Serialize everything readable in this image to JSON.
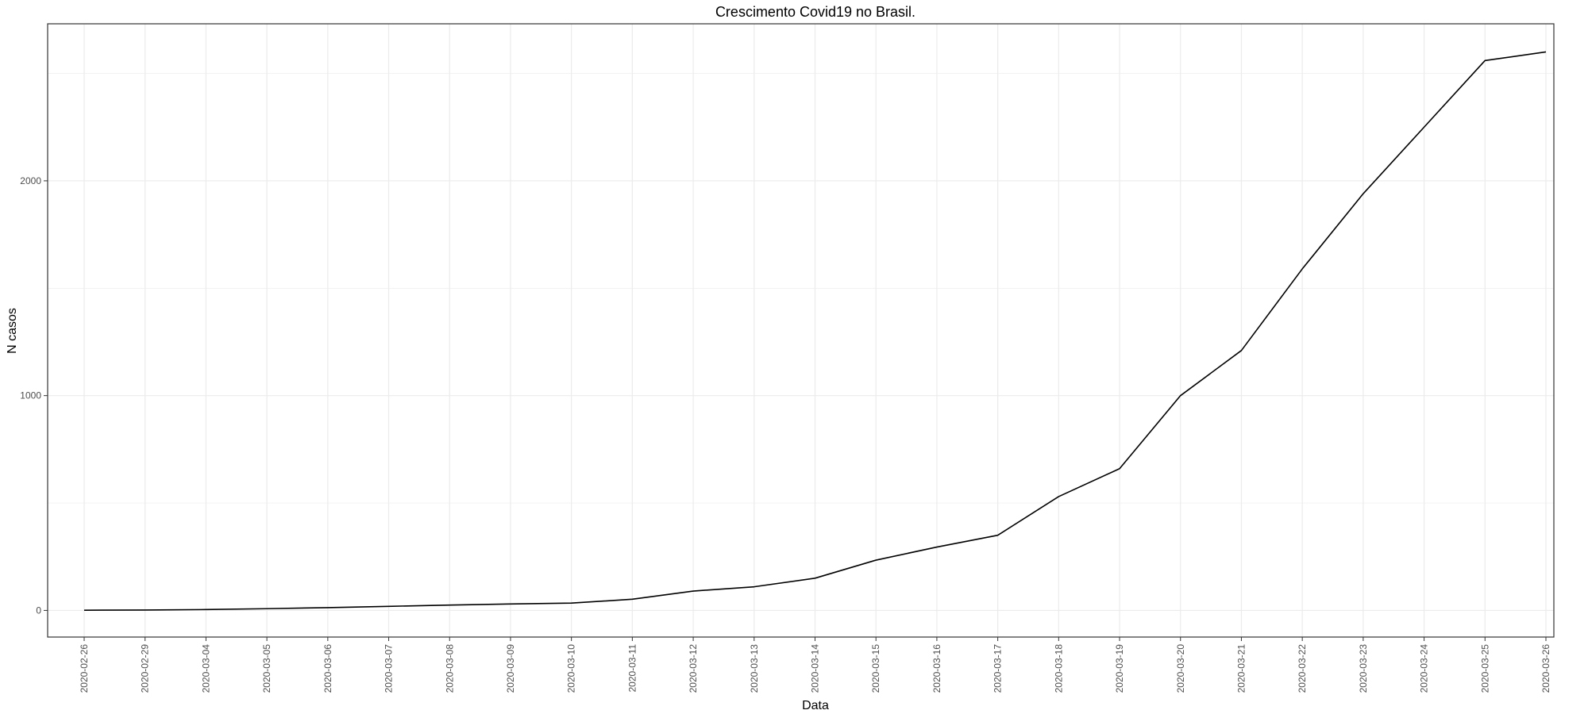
{
  "chart_data": {
    "type": "line",
    "title": "Crescimento Covid19 no Brasil.",
    "xlabel": "Data",
    "ylabel": "N casos",
    "x": [
      "2020-02-26",
      "2020-02-29",
      "2020-03-04",
      "2020-03-05",
      "2020-03-06",
      "2020-03-07",
      "2020-03-08",
      "2020-03-09",
      "2020-03-10",
      "2020-03-11",
      "2020-03-12",
      "2020-03-13",
      "2020-03-14",
      "2020-03-15",
      "2020-03-16",
      "2020-03-17",
      "2020-03-18",
      "2020-03-19",
      "2020-03-20",
      "2020-03-21",
      "2020-03-22",
      "2020-03-23",
      "2020-03-24",
      "2020-03-25",
      "2020-03-26"
    ],
    "series": [
      {
        "values": [
          1,
          2,
          4,
          8,
          13,
          19,
          25,
          30,
          34,
          52,
          90,
          110,
          150,
          234,
          295,
          350,
          530,
          660,
          1000,
          1210,
          1590,
          1940,
          2250,
          2560,
          2600
        ]
      }
    ],
    "ylim": [
      -124,
      2731
    ],
    "yticks": [
      0,
      1000,
      2000
    ],
    "yticks_minor": [
      500,
      1500,
      2500
    ],
    "grid": true,
    "line_color": "#000000",
    "grid_color": "#ebebeb",
    "panel_border_color": "#333333"
  }
}
